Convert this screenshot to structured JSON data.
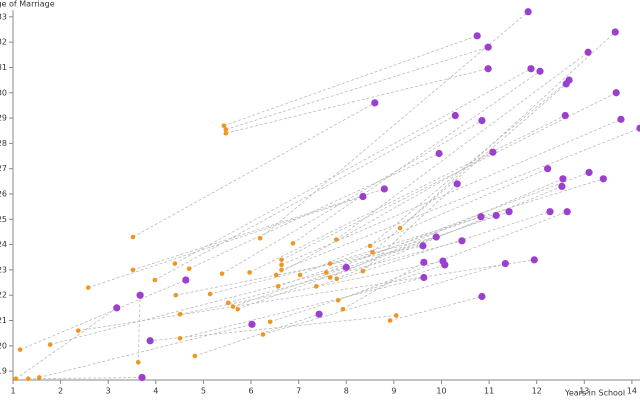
{
  "chart_data": {
    "type": "scatter",
    "x_label": "Years in School",
    "y_label": "Age of Marriage",
    "xlim": [
      1,
      14.17
    ],
    "ylim": [
      18.65,
      33.27
    ],
    "xticks": [
      1,
      2,
      3,
      4,
      5,
      6,
      7,
      8,
      9,
      10,
      11,
      12,
      13,
      14
    ],
    "yticks": [
      19,
      20,
      21,
      22,
      23,
      24,
      25,
      26,
      27,
      28,
      29,
      30,
      31,
      32,
      33
    ],
    "grid": false,
    "connect_pairs": true,
    "series": [
      {
        "color": "#f0961e",
        "x": [
          5.43,
          5.47,
          5.47,
          3.52,
          6.19,
          6.88,
          7.79,
          9.13,
          8.5,
          8.55,
          2.58,
          3.52,
          3.98,
          4.4,
          4.7,
          5.39,
          5.97,
          6.64,
          6.64,
          6.64,
          6.53,
          7.03,
          7.58,
          7.66,
          7.66,
          7.8,
          8.35,
          4.42,
          5.14,
          5.52,
          5.62,
          5.72,
          6.57,
          7.37,
          7.83,
          7.93,
          4.51,
          6.4,
          6.25,
          2.37,
          1.78,
          1.15,
          4.51,
          3.63,
          4.82,
          8.92,
          1.06,
          1.32,
          1.55,
          9.05
        ],
        "values": [
          28.7,
          28.55,
          28.4,
          24.3,
          24.25,
          24.05,
          24.2,
          24.65,
          23.95,
          23.7,
          22.3,
          23.0,
          22.6,
          23.25,
          23.05,
          22.85,
          22.9,
          23.4,
          23.2,
          23.0,
          22.8,
          22.8,
          22.9,
          23.25,
          22.7,
          22.65,
          22.95,
          22.0,
          22.05,
          21.7,
          21.55,
          21.45,
          22.35,
          22.35,
          21.8,
          21.45,
          21.25,
          20.95,
          20.45,
          20.6,
          20.05,
          19.85,
          20.3,
          19.35,
          19.6,
          21.0,
          18.7,
          18.7,
          18.75,
          21.2
        ]
      },
      {
        "color": "#9b3fcf",
        "x": [
          10.75,
          10.98,
          10.98,
          8.6,
          11.82,
          12.07,
          13.08,
          13.65,
          12.68,
          12.62,
          8.35,
          8.8,
          10.29,
          11.88,
          9.95,
          10.85,
          12.6,
          13.67,
          13.77,
          14.17,
          11.08,
          12.23,
          13.1,
          13.4,
          12.55,
          12.53,
          10.33,
          9.61,
          9.89,
          10.43,
          11.42,
          11.15,
          10.83,
          12.28,
          12.64,
          9.63,
          10.03,
          10.07,
          11.34,
          11.95,
          8.0,
          4.63,
          9.63,
          3.67,
          7.43,
          10.85,
          3.18,
          3.71,
          6.02,
          3.88
        ],
        "values": [
          32.25,
          31.8,
          30.95,
          29.6,
          33.2,
          30.85,
          31.6,
          32.4,
          30.5,
          30.35,
          25.9,
          26.2,
          29.1,
          30.95,
          27.6,
          28.9,
          29.1,
          30.0,
          28.95,
          28.6,
          27.65,
          27.0,
          26.85,
          26.6,
          26.6,
          26.3,
          26.4,
          23.95,
          24.3,
          24.15,
          25.3,
          25.15,
          25.1,
          25.3,
          25.3,
          23.3,
          23.35,
          23.2,
          23.25,
          23.4,
          23.1,
          22.6,
          22.7,
          22.0,
          21.25,
          21.95,
          21.5,
          18.75,
          20.85,
          20.2
        ]
      }
    ]
  }
}
